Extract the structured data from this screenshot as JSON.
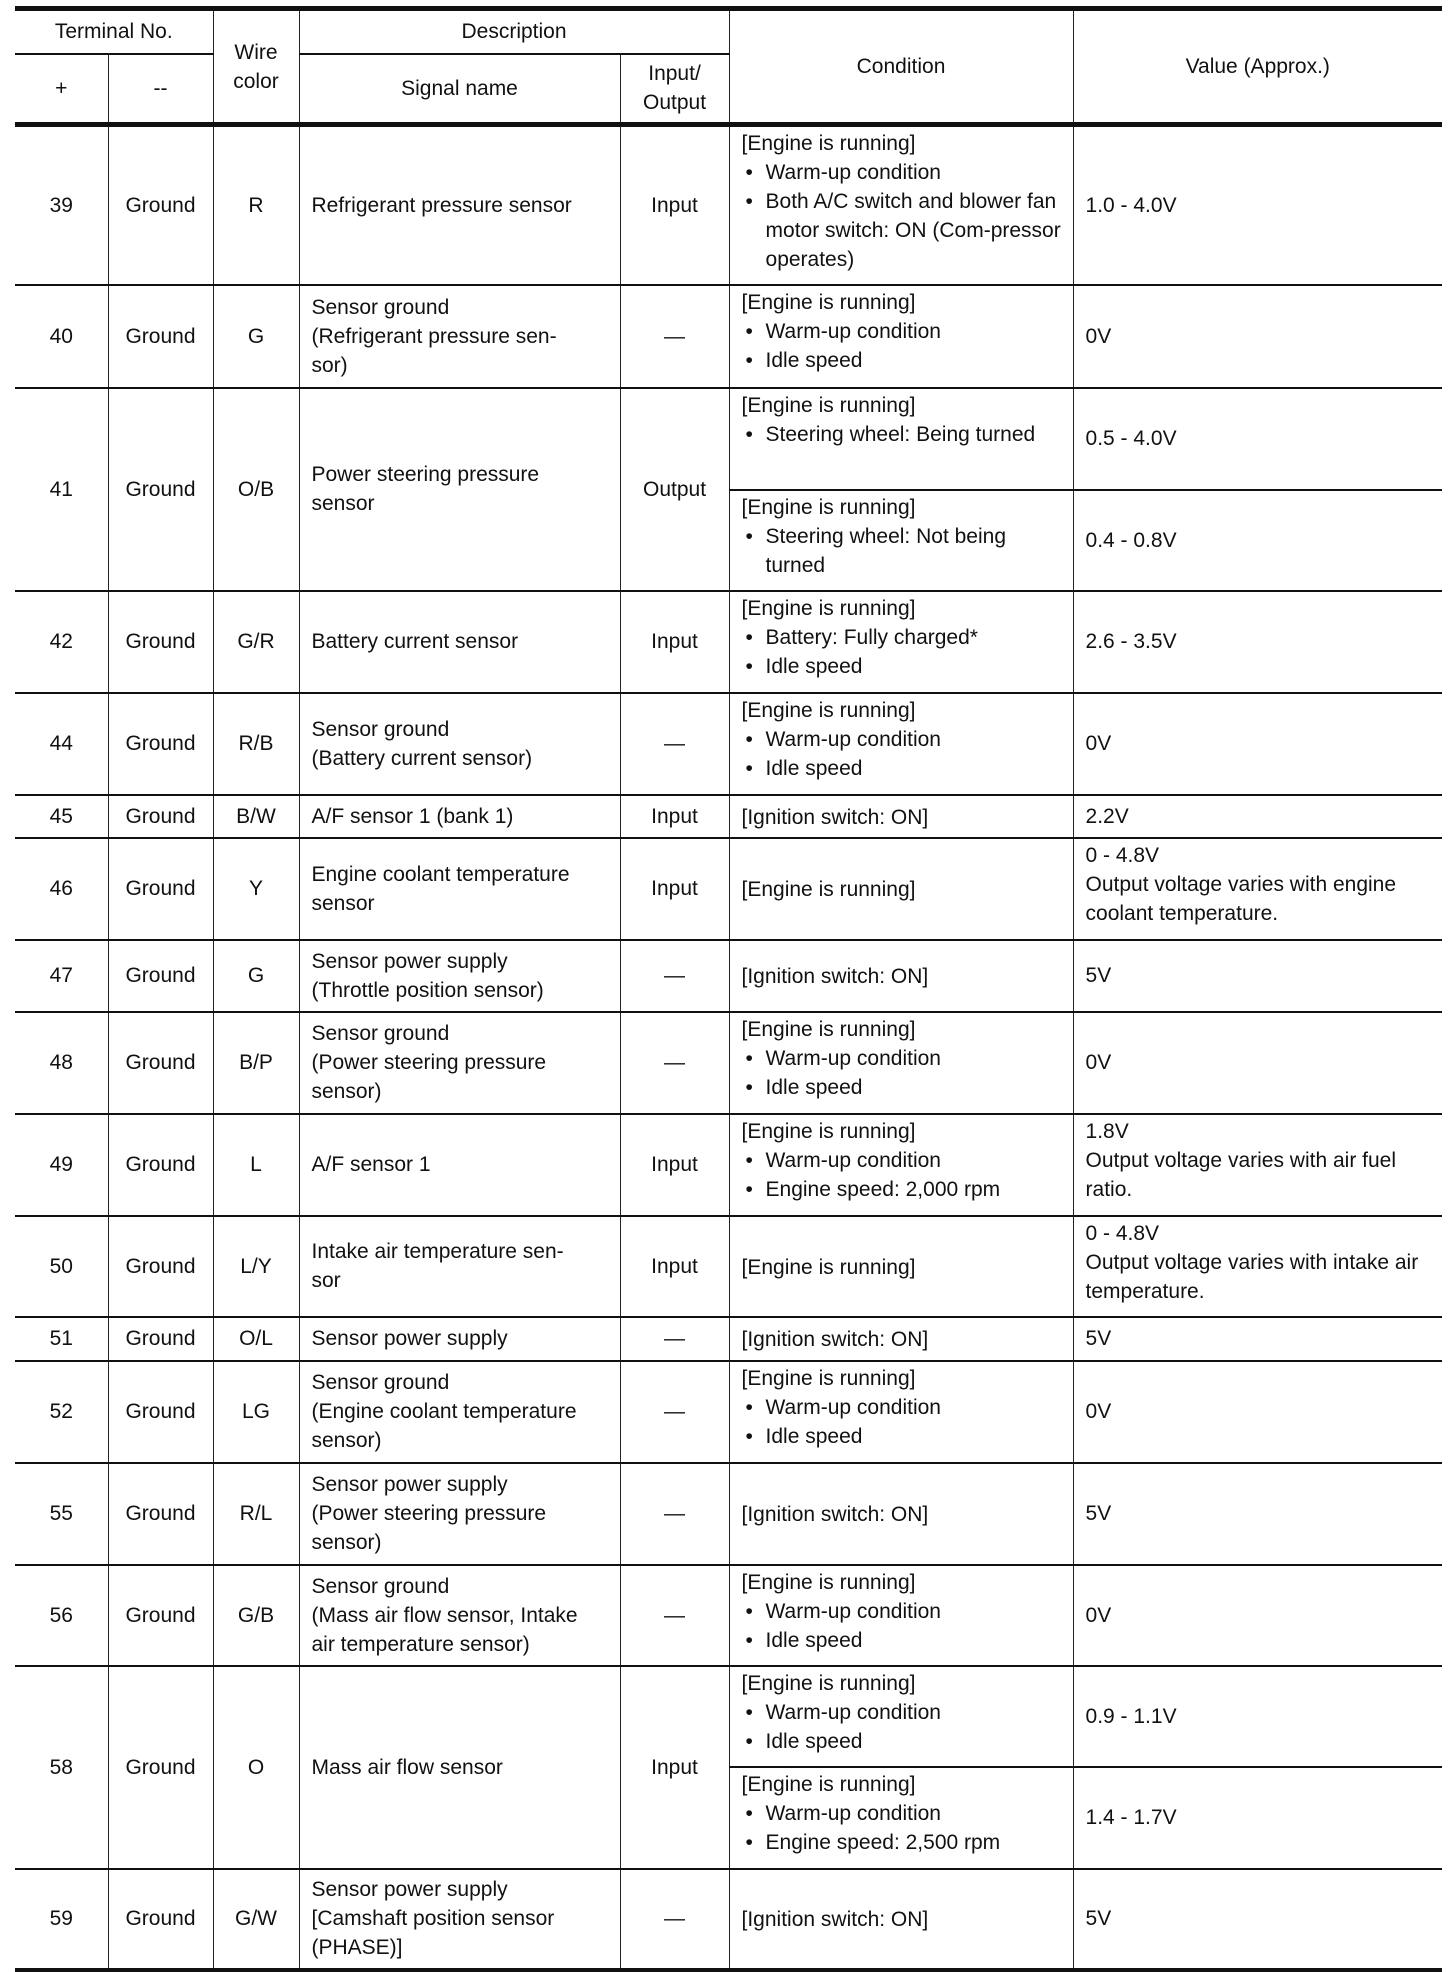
{
  "header": {
    "terminal_no": "Terminal No.",
    "plus": "+",
    "minus": "--",
    "wire_color": "Wire color",
    "description": "Description",
    "signal_name": "Signal name",
    "input_output": "Input/ Output",
    "condition": "Condition",
    "value": "Value (Approx.)"
  },
  "rows": [
    {
      "plus": "39",
      "minus": "Ground",
      "wire": "R",
      "signal": [
        "Refrigerant pressure sensor"
      ],
      "io": "Input",
      "conds": [
        {
          "head": "[Engine is running]",
          "bullets": [
            "Warm-up condition",
            "Both A/C switch and blower fan motor switch: ON (Com-pressor operates)"
          ],
          "value": [
            "1.0 - 4.0V"
          ]
        }
      ]
    },
    {
      "plus": "40",
      "minus": "Ground",
      "wire": "G",
      "signal": [
        "Sensor ground",
        "(Refrigerant pressure sen-",
        "sor)"
      ],
      "io": "—",
      "conds": [
        {
          "head": "[Engine is running]",
          "bullets": [
            "Warm-up condition",
            "Idle speed"
          ],
          "value": [
            "0V"
          ]
        }
      ]
    },
    {
      "plus": "41",
      "minus": "Ground",
      "wire": "O/B",
      "signal": [
        "Power steering pressure",
        "sensor"
      ],
      "io": "Output",
      "conds": [
        {
          "head": "[Engine is running]",
          "bullets": [
            "Steering wheel: Being turned"
          ],
          "value": [
            "0.5 - 4.0V"
          ]
        },
        {
          "head": "[Engine is running]",
          "bullets": [
            "Steering wheel: Not being turned"
          ],
          "value": [
            "0.4 - 0.8V"
          ]
        }
      ]
    },
    {
      "plus": "42",
      "minus": "Ground",
      "wire": "G/R",
      "signal": [
        "Battery current sensor"
      ],
      "io": "Input",
      "conds": [
        {
          "head": "[Engine is running]",
          "bullets": [
            "Battery: Fully charged*",
            "Idle speed"
          ],
          "value": [
            "2.6 - 3.5V"
          ]
        }
      ]
    },
    {
      "plus": "44",
      "minus": "Ground",
      "wire": "R/B",
      "signal": [
        "Sensor ground",
        "(Battery current sensor)"
      ],
      "io": "—",
      "conds": [
        {
          "head": "[Engine is running]",
          "bullets": [
            "Warm-up condition",
            "Idle speed"
          ],
          "value": [
            "0V"
          ]
        }
      ]
    },
    {
      "plus": "45",
      "minus": "Ground",
      "wire": "B/W",
      "signal": [
        "A/F sensor 1 (bank 1)"
      ],
      "io": "Input",
      "conds": [
        {
          "head": "[Ignition switch: ON]",
          "bullets": [],
          "value": [
            "2.2V"
          ]
        }
      ]
    },
    {
      "plus": "46",
      "minus": "Ground",
      "wire": "Y",
      "signal": [
        "Engine coolant temperature",
        "sensor"
      ],
      "io": "Input",
      "conds": [
        {
          "head": "[Engine is running]",
          "bullets": [],
          "value": [
            "0 - 4.8V",
            "Output voltage varies with engine coolant temperature."
          ]
        }
      ]
    },
    {
      "plus": "47",
      "minus": "Ground",
      "wire": "G",
      "signal": [
        "Sensor power supply",
        "(Throttle position sensor)"
      ],
      "io": "—",
      "conds": [
        {
          "head": "[Ignition switch: ON]",
          "bullets": [],
          "value": [
            "5V"
          ]
        }
      ]
    },
    {
      "plus": "48",
      "minus": "Ground",
      "wire": "B/P",
      "signal": [
        "Sensor ground",
        "(Power steering pressure",
        "sensor)"
      ],
      "io": "—",
      "conds": [
        {
          "head": "[Engine is running]",
          "bullets": [
            "Warm-up condition",
            "Idle speed"
          ],
          "value": [
            "0V"
          ]
        }
      ]
    },
    {
      "plus": "49",
      "minus": "Ground",
      "wire": "L",
      "signal": [
        "A/F sensor 1"
      ],
      "io": "Input",
      "conds": [
        {
          "head": "[Engine is running]",
          "bullets": [
            "Warm-up condition",
            "Engine speed: 2,000 rpm"
          ],
          "value": [
            "1.8V",
            "Output voltage varies with air fuel ratio."
          ]
        }
      ]
    },
    {
      "plus": "50",
      "minus": "Ground",
      "wire": "L/Y",
      "signal": [
        "Intake air temperature sen-",
        "sor"
      ],
      "io": "Input",
      "conds": [
        {
          "head": "[Engine is running]",
          "bullets": [],
          "value": [
            "0 - 4.8V",
            "Output voltage varies with intake air temperature."
          ]
        }
      ]
    },
    {
      "plus": "51",
      "minus": "Ground",
      "wire": "O/L",
      "signal": [
        "Sensor power supply"
      ],
      "io": "—",
      "conds": [
        {
          "head": "[Ignition switch: ON]",
          "bullets": [],
          "value": [
            "5V"
          ]
        }
      ]
    },
    {
      "plus": "52",
      "minus": "Ground",
      "wire": "LG",
      "signal": [
        "Sensor ground",
        "(Engine coolant temperature",
        "sensor)"
      ],
      "io": "—",
      "conds": [
        {
          "head": "[Engine is running]",
          "bullets": [
            "Warm-up condition",
            "Idle speed"
          ],
          "value": [
            "0V"
          ]
        }
      ]
    },
    {
      "plus": "55",
      "minus": "Ground",
      "wire": "R/L",
      "signal": [
        "Sensor power supply",
        "(Power steering pressure",
        "sensor)"
      ],
      "io": "—",
      "conds": [
        {
          "head": "[Ignition switch: ON]",
          "bullets": [],
          "value": [
            "5V"
          ]
        }
      ]
    },
    {
      "plus": "56",
      "minus": "Ground",
      "wire": "G/B",
      "signal": [
        "Sensor ground",
        "(Mass air flow sensor, Intake",
        "air temperature sensor)"
      ],
      "io": "—",
      "conds": [
        {
          "head": "[Engine is running]",
          "bullets": [
            "Warm-up condition",
            "Idle speed"
          ],
          "value": [
            "0V"
          ]
        }
      ]
    },
    {
      "plus": "58",
      "minus": "Ground",
      "wire": "O",
      "signal": [
        "Mass air flow sensor"
      ],
      "io": "Input",
      "conds": [
        {
          "head": "[Engine is running]",
          "bullets": [
            "Warm-up condition",
            "Idle speed"
          ],
          "value": [
            "0.9 - 1.1V"
          ]
        },
        {
          "head": "[Engine is running]",
          "bullets": [
            "Warm-up condition",
            "Engine speed: 2,500 rpm"
          ],
          "value": [
            "1.4 - 1.7V"
          ]
        }
      ]
    },
    {
      "plus": "59",
      "minus": "Ground",
      "wire": "G/W",
      "signal": [
        "Sensor power supply",
        "[Camshaft position sensor",
        "(PHASE)]"
      ],
      "io": "—",
      "conds": [
        {
          "head": "[Ignition switch: ON]",
          "bullets": [],
          "value": [
            "5V"
          ]
        }
      ]
    }
  ]
}
